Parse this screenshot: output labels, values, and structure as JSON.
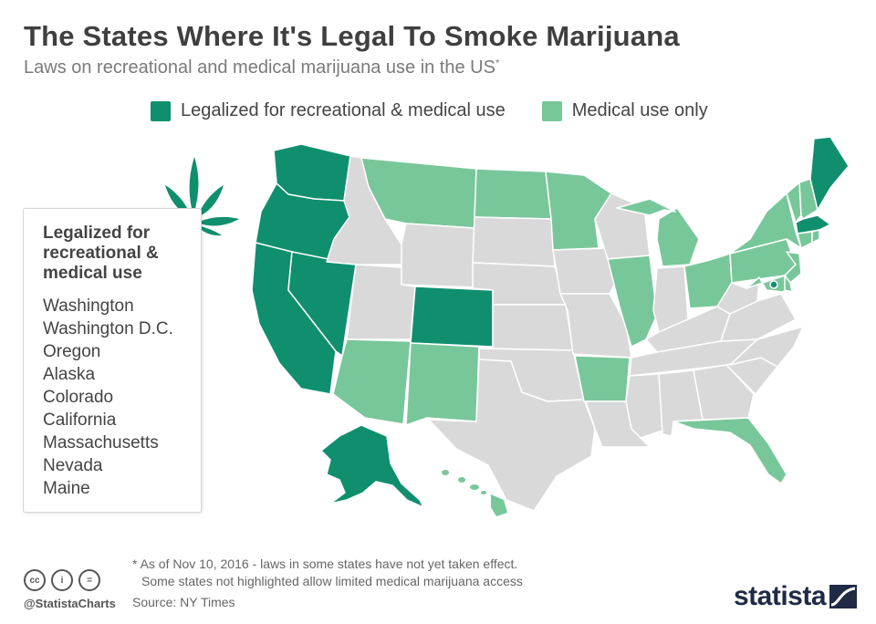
{
  "title": "The States Where It's Legal To Smoke Marijuana",
  "subtitle": "Laws on recreational and medical marijuana use in the US",
  "subtitle_mark": "*",
  "legend": [
    {
      "label": "Legalized for recreational & medical use",
      "color": "#0f8f6e"
    },
    {
      "label": "Medical use only",
      "color": "#78c79a"
    }
  ],
  "colors": {
    "recreational": "#0f8f6e",
    "medical": "#78c79a",
    "none": "#d9d9d9",
    "border": "#ffffff"
  },
  "recreational_list": {
    "title": "Legalized for recreational & medical use",
    "items": [
      "Washington",
      "Washington D.C.",
      "Oregon",
      "Alaska",
      "Colorado",
      "California",
      "Massachusetts",
      "Nevada",
      "Maine"
    ]
  },
  "states": {
    "recreational": [
      "Washington",
      "Oregon",
      "California",
      "Nevada",
      "Colorado",
      "Alaska",
      "Maine",
      "Massachusetts",
      "Washington D.C."
    ],
    "medical": [
      "Montana",
      "North Dakota",
      "Minnesota",
      "Illinois",
      "Michigan",
      "Ohio",
      "Pennsylvania",
      "New York",
      "Vermont",
      "New Hampshire",
      "Rhode Island",
      "Connecticut",
      "New Jersey",
      "Delaware",
      "Maryland",
      "Arizona",
      "New Mexico",
      "Arkansas",
      "Florida",
      "Hawaii"
    ]
  },
  "icons": {
    "leaf": "cannabis-leaf-icon"
  },
  "footnote": {
    "line1": "* As  of Nov 10, 2016 - laws in some states have not yet taken effect.",
    "line2": "Some states not highlighted allow limited medical marijuana access"
  },
  "source": "Source: NY Times",
  "handle": "@StatistaCharts",
  "license_icons": [
    "cc",
    "i",
    "="
  ],
  "brand": "statista"
}
